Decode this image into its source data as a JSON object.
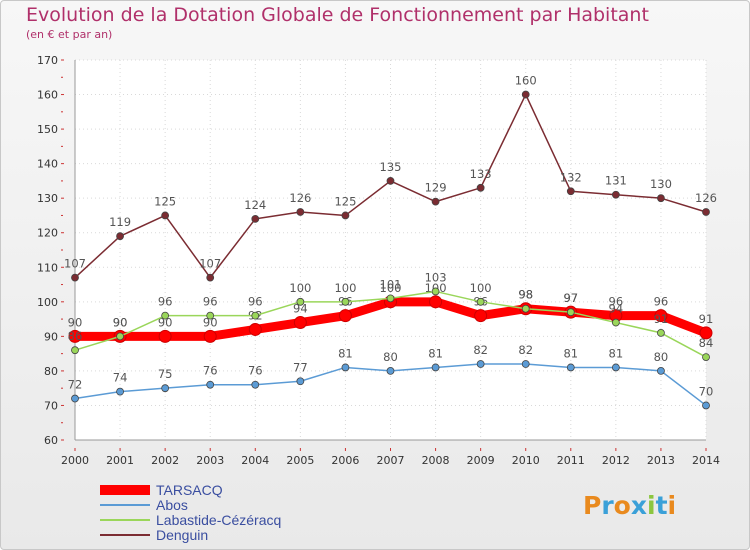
{
  "page": {
    "title": "Evolution de la Dotation Globale de Fonctionnement par Habitant",
    "subtitle": "(en € et par an)"
  },
  "branding": {
    "logo_text": "Proxiti",
    "logo_colors": [
      "#e98a1e",
      "#3aa0d8",
      "#e98a1e",
      "#3aa0d8",
      "#8cc63f",
      "#3aa0d8",
      "#e98a1e"
    ]
  },
  "chart_data": {
    "type": "line",
    "title": "Evolution de la Dotation Globale de Fonctionnement par Habitant",
    "subtitle": "(en € et par an)",
    "x": [
      2000,
      2001,
      2002,
      2003,
      2004,
      2005,
      2006,
      2007,
      2008,
      2009,
      2010,
      2011,
      2012,
      2013,
      2014
    ],
    "x_tick_labels": [
      "2000",
      "2001",
      "2002",
      "2003",
      "2004",
      "2005",
      "2006",
      "2007",
      "2008",
      "2009",
      "2010",
      "2011",
      "2012",
      "2013",
      "2014"
    ],
    "ylim": [
      60,
      170
    ],
    "y_ticks": [
      60,
      70,
      80,
      90,
      100,
      110,
      120,
      130,
      140,
      150,
      160,
      170
    ],
    "grid": true,
    "legend_position": "bottom-left",
    "series": [
      {
        "name": "TARSACQ",
        "color": "#ff0000",
        "emphasis": true,
        "values": [
          90,
          90,
          90,
          90,
          92,
          94,
          96,
          100,
          100,
          96,
          98,
          97,
          96,
          96,
          91
        ],
        "labels": [
          "90",
          "90",
          "90",
          "90",
          "92",
          "94",
          "96",
          "100",
          "100",
          "96",
          "98",
          "97",
          "96",
          "96",
          "91"
        ]
      },
      {
        "name": "Abos",
        "color": "#5b9bd5",
        "emphasis": false,
        "values": [
          72,
          74,
          75,
          76,
          76,
          77,
          81,
          80,
          81,
          82,
          82,
          81,
          81,
          80,
          70
        ],
        "labels": [
          "72",
          "74",
          "75",
          "76",
          "76",
          "77",
          "81",
          "80",
          "81",
          "82",
          "82",
          "81",
          "81",
          "80",
          "70"
        ]
      },
      {
        "name": "Labastide-Cézéracq",
        "color": "#9ad65a",
        "emphasis": false,
        "values": [
          86,
          90,
          96,
          96,
          96,
          100,
          100,
          101,
          103,
          100,
          98,
          97,
          94,
          91,
          84
        ],
        "labels": [
          "86",
          "90",
          "96",
          "96",
          "96",
          "100",
          "100",
          "101",
          "103",
          "100",
          "98",
          "97",
          "94",
          "91",
          "84"
        ]
      },
      {
        "name": "Denguin",
        "color": "#7b2c32",
        "emphasis": false,
        "values": [
          107,
          119,
          125,
          107,
          124,
          126,
          125,
          135,
          129,
          133,
          160,
          132,
          131,
          130,
          126
        ],
        "labels": [
          "107",
          "119",
          "125",
          "107",
          "124",
          "126",
          "125",
          "135",
          "129",
          "133",
          "160",
          "132",
          "131",
          "130",
          "126"
        ]
      }
    ]
  }
}
